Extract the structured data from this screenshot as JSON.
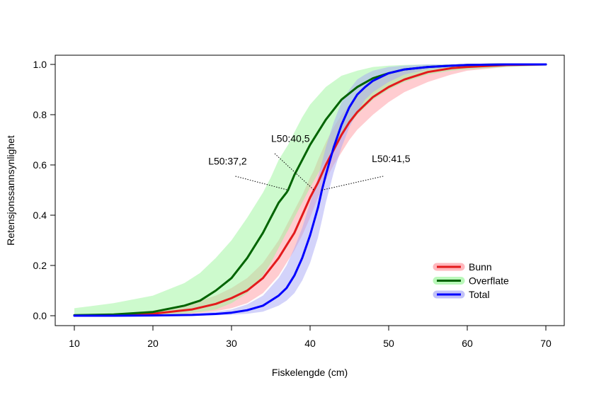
{
  "chart_data": {
    "type": "line",
    "title": "",
    "xlabel": "Fiskelengde (cm)",
    "ylabel": "Retensjonssannsynlighet",
    "xlim": [
      10,
      70
    ],
    "ylim": [
      0,
      1
    ],
    "x_ticks": [
      10,
      20,
      30,
      40,
      50,
      60,
      70
    ],
    "y_ticks": [
      0.0,
      0.2,
      0.4,
      0.6,
      0.8,
      1.0
    ],
    "x_tick_labels": [
      "10",
      "20",
      "30",
      "40",
      "50",
      "60",
      "70"
    ],
    "y_tick_labels": [
      "0.0",
      "0.2",
      "0.4",
      "0.6",
      "0.8",
      "1.0"
    ],
    "grid": false,
    "legend_position": "bottom-right",
    "series": [
      {
        "name": "Bunn",
        "line_color": "#e31a1c",
        "band_color": "#ff9aa2",
        "l50": 40.5,
        "x": [
          10,
          15,
          20,
          25,
          28,
          30,
          32,
          34,
          36,
          37,
          38,
          39,
          40,
          40.5,
          41,
          42,
          43,
          44,
          45,
          46,
          48,
          50,
          52,
          55,
          58,
          60,
          65,
          70
        ],
        "y": [
          0.001,
          0.002,
          0.008,
          0.025,
          0.047,
          0.07,
          0.1,
          0.15,
          0.23,
          0.28,
          0.33,
          0.4,
          0.47,
          0.5,
          0.53,
          0.6,
          0.66,
          0.72,
          0.77,
          0.81,
          0.87,
          0.91,
          0.94,
          0.97,
          0.985,
          0.99,
          0.998,
          1.0
        ],
        "lower": [
          0.0,
          0.0,
          0.002,
          0.008,
          0.018,
          0.03,
          0.05,
          0.09,
          0.16,
          0.21,
          0.26,
          0.32,
          0.39,
          0.43,
          0.47,
          0.54,
          0.6,
          0.65,
          0.7,
          0.74,
          0.8,
          0.85,
          0.89,
          0.93,
          0.96,
          0.975,
          0.99,
          0.996
        ],
        "upper": [
          0.004,
          0.008,
          0.02,
          0.05,
          0.08,
          0.11,
          0.15,
          0.21,
          0.3,
          0.36,
          0.42,
          0.48,
          0.55,
          0.58,
          0.62,
          0.69,
          0.75,
          0.8,
          0.84,
          0.88,
          0.93,
          0.96,
          0.975,
          0.99,
          0.995,
          0.998,
          1.0,
          1.0
        ]
      },
      {
        "name": "Overflate",
        "line_color": "#006400",
        "band_color": "#9cf59c",
        "l50": 37.2,
        "x": [
          10,
          15,
          20,
          24,
          26,
          28,
          30,
          32,
          34,
          35,
          36,
          37,
          37.2,
          38,
          39,
          40,
          42,
          44,
          46,
          48,
          50,
          52,
          55,
          58,
          60,
          65,
          70
        ],
        "y": [
          0.002,
          0.005,
          0.015,
          0.04,
          0.06,
          0.1,
          0.15,
          0.23,
          0.33,
          0.39,
          0.45,
          0.49,
          0.5,
          0.56,
          0.62,
          0.68,
          0.78,
          0.86,
          0.91,
          0.945,
          0.965,
          0.98,
          0.99,
          0.995,
          0.998,
          1.0,
          1.0
        ],
        "lower": [
          0.0,
          0.0,
          0.003,
          0.008,
          0.015,
          0.025,
          0.05,
          0.09,
          0.16,
          0.21,
          0.27,
          0.33,
          0.34,
          0.39,
          0.45,
          0.51,
          0.62,
          0.72,
          0.8,
          0.86,
          0.9,
          0.93,
          0.96,
          0.975,
          0.98,
          0.99,
          0.995
        ],
        "upper": [
          0.03,
          0.05,
          0.08,
          0.13,
          0.17,
          0.23,
          0.3,
          0.39,
          0.49,
          0.55,
          0.62,
          0.67,
          0.68,
          0.73,
          0.79,
          0.84,
          0.91,
          0.955,
          0.975,
          0.99,
          0.995,
          0.998,
          1.0,
          1.0,
          1.0,
          1.0,
          1.0
        ]
      },
      {
        "name": "Total",
        "line_color": "#0000ff",
        "band_color": "#a8a8f5",
        "l50": 41.5,
        "x": [
          10,
          15,
          20,
          25,
          28,
          30,
          32,
          34,
          36,
          37,
          38,
          39,
          40,
          41,
          41.5,
          42,
          43,
          44,
          45,
          46,
          47,
          48,
          50,
          52,
          55,
          58,
          60,
          65,
          70
        ],
        "y": [
          0.0,
          0.0,
          0.001,
          0.003,
          0.007,
          0.012,
          0.022,
          0.04,
          0.08,
          0.11,
          0.16,
          0.23,
          0.32,
          0.43,
          0.5,
          0.56,
          0.67,
          0.76,
          0.83,
          0.88,
          0.91,
          0.935,
          0.965,
          0.98,
          0.99,
          0.995,
          0.998,
          1.0,
          1.0
        ],
        "lower": [
          0.0,
          0.0,
          0.0,
          0.0,
          0.002,
          0.004,
          0.008,
          0.016,
          0.04,
          0.06,
          0.09,
          0.14,
          0.21,
          0.31,
          0.38,
          0.45,
          0.57,
          0.67,
          0.75,
          0.81,
          0.86,
          0.89,
          0.93,
          0.96,
          0.98,
          0.99,
          0.995,
          0.998,
          1.0
        ],
        "upper": [
          0.0,
          0.001,
          0.003,
          0.008,
          0.016,
          0.025,
          0.045,
          0.08,
          0.15,
          0.2,
          0.27,
          0.35,
          0.45,
          0.55,
          0.61,
          0.67,
          0.77,
          0.85,
          0.9,
          0.94,
          0.96,
          0.975,
          0.99,
          0.995,
          1.0,
          1.0,
          1.0,
          1.0,
          1.0
        ]
      }
    ],
    "annotations": [
      {
        "text": "L50:37,2",
        "label_x": 29.5,
        "label_y": 0.615,
        "line_start": [
          30.5,
          0.555
        ],
        "line_end": [
          37.2,
          0.5
        ]
      },
      {
        "text": "L50:40,5",
        "label_x": 37.5,
        "label_y": 0.705,
        "line_start": [
          35.5,
          0.645
        ],
        "line_end": [
          40.5,
          0.5
        ]
      },
      {
        "text": "L50:41,5",
        "label_x": 50.3,
        "label_y": 0.625,
        "line_start": [
          49.3,
          0.555
        ],
        "line_end": [
          41.5,
          0.5
        ]
      }
    ]
  }
}
